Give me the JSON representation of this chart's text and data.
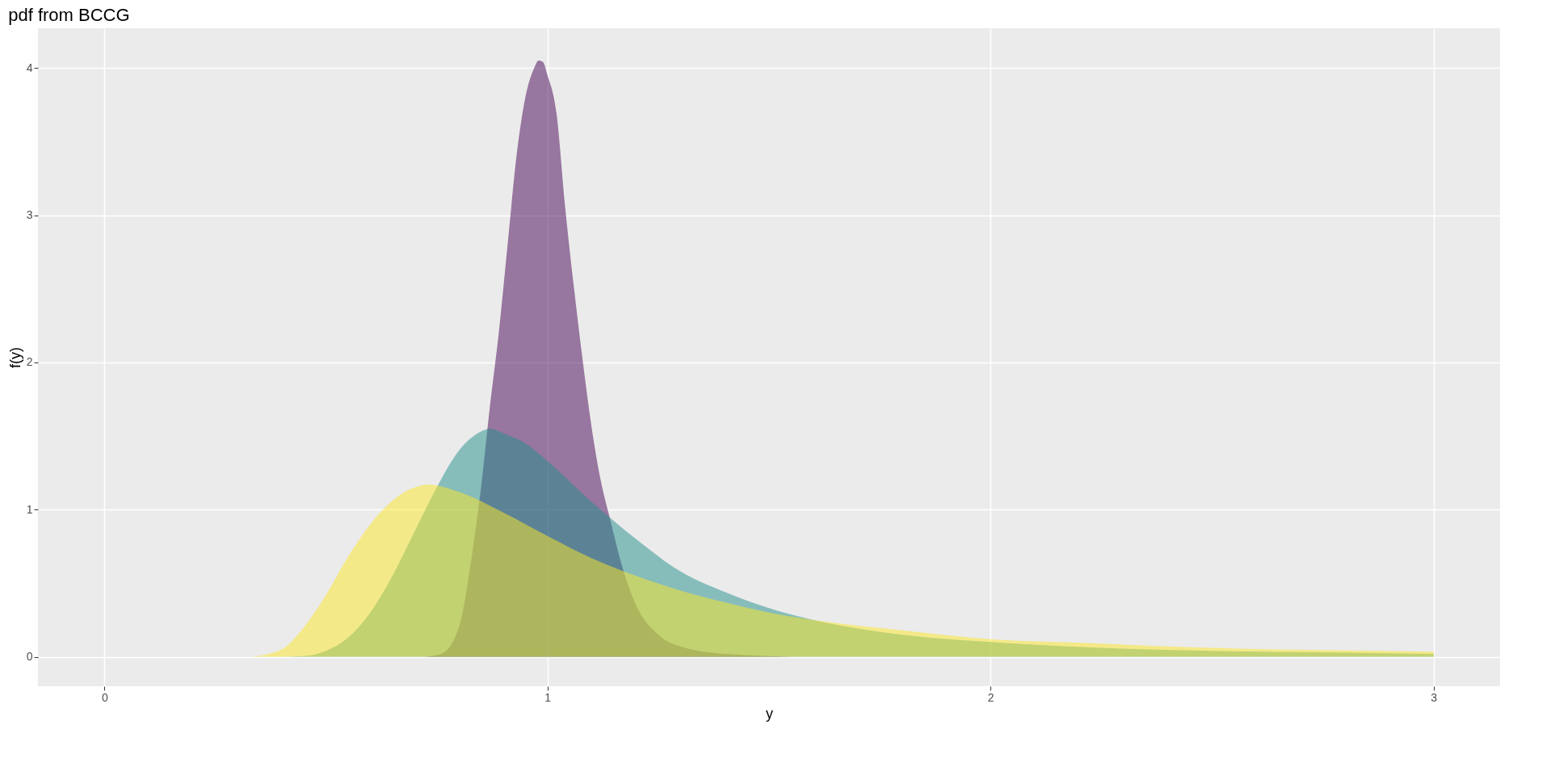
{
  "chart_data": {
    "type": "area",
    "title": "pdf from  BCCG",
    "xlabel": "y",
    "ylabel": "f(y)",
    "xlim": [
      -0.15,
      3.15
    ],
    "ylim": [
      -0.2,
      4.27
    ],
    "xticks": [
      0,
      1,
      2,
      3
    ],
    "yticks": [
      0,
      1,
      2,
      3,
      4
    ],
    "grid": true,
    "series": [
      {
        "color": "#440154",
        "x": [
          0.72,
          0.76,
          0.8,
          0.83,
          0.85,
          0.87,
          0.89,
          0.91,
          0.93,
          0.95,
          0.97,
          0.98,
          0.99,
          1.0,
          1.02,
          1.04,
          1.06,
          1.08,
          1.1,
          1.12,
          1.14,
          1.17,
          1.2,
          1.25,
          1.3,
          1.4,
          1.6,
          3.0
        ],
        "values": [
          0,
          0.02,
          0.2,
          0.7,
          1.15,
          1.7,
          2.2,
          2.8,
          3.4,
          3.8,
          4.0,
          4.05,
          4.04,
          3.95,
          3.7,
          3.05,
          2.5,
          2.0,
          1.55,
          1.2,
          0.95,
          0.6,
          0.35,
          0.15,
          0.07,
          0.02,
          0,
          0
        ]
      },
      {
        "color": "#21908c",
        "x": [
          0.4,
          0.45,
          0.5,
          0.55,
          0.6,
          0.65,
          0.7,
          0.75,
          0.8,
          0.85,
          0.87,
          0.9,
          0.95,
          1.0,
          1.1,
          1.2,
          1.3,
          1.4,
          1.5,
          1.6,
          1.8,
          2.0,
          2.25,
          2.5,
          2.75,
          3.0
        ],
        "values": [
          0,
          0.005,
          0.04,
          0.13,
          0.3,
          0.55,
          0.85,
          1.15,
          1.4,
          1.53,
          1.55,
          1.52,
          1.45,
          1.33,
          1.05,
          0.8,
          0.58,
          0.44,
          0.33,
          0.25,
          0.15,
          0.1,
          0.06,
          0.04,
          0.03,
          0.02
        ]
      },
      {
        "color": "#fde725",
        "x": [
          0.33,
          0.4,
          0.45,
          0.5,
          0.55,
          0.6,
          0.65,
          0.7,
          0.73,
          0.8,
          0.9,
          1.0,
          1.1,
          1.2,
          1.3,
          1.4,
          1.5,
          1.6,
          1.8,
          2.0,
          2.25,
          2.5,
          2.75,
          3.0
        ],
        "values": [
          0,
          0.05,
          0.2,
          0.42,
          0.68,
          0.9,
          1.06,
          1.15,
          1.17,
          1.12,
          0.98,
          0.82,
          0.67,
          0.55,
          0.45,
          0.37,
          0.3,
          0.25,
          0.18,
          0.12,
          0.09,
          0.06,
          0.045,
          0.035
        ]
      }
    ]
  }
}
